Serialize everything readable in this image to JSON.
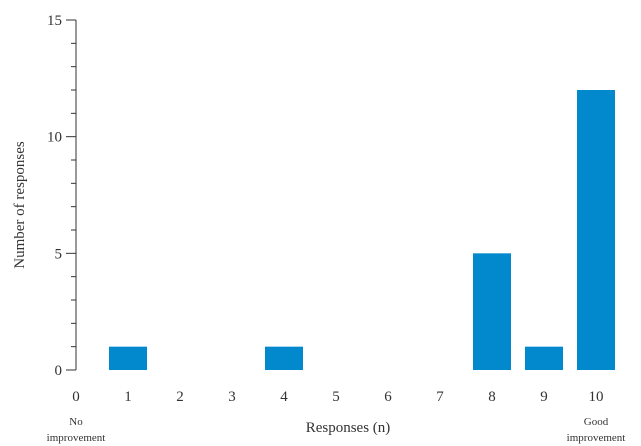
{
  "chart_data": {
    "type": "bar",
    "title": "",
    "xlabel": "Responses (n)",
    "ylabel": "Number of responses",
    "x_categories": [
      "0",
      "1",
      "2",
      "3",
      "4",
      "5",
      "6",
      "7",
      "8",
      "9",
      "10"
    ],
    "x": [
      1,
      4,
      8,
      9,
      10
    ],
    "values": [
      1,
      1,
      5,
      1,
      12
    ],
    "ylim": [
      0,
      15
    ],
    "y_major_ticks": [
      0,
      5,
      10,
      15
    ],
    "y_minor_step": 1,
    "bar_color": "#0288cc",
    "grid": false,
    "annotations": {
      "left": "No improvement",
      "right": "Good improvement"
    }
  }
}
